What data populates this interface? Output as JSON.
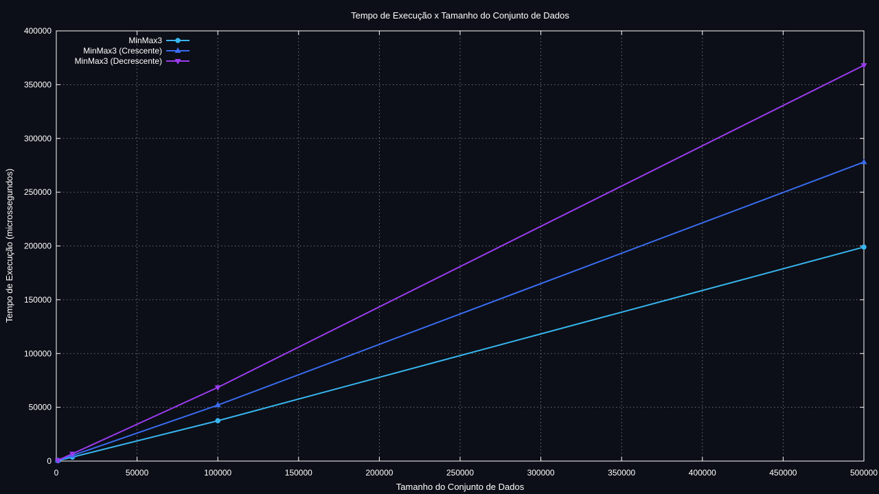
{
  "chart_data": {
    "type": "line",
    "title": "Tempo de Execução x Tamanho do Conjunto de Dados",
    "xlabel": "Tamanho do Conjunto de Dados",
    "ylabel": "Tempo de Execução (microssegundos)",
    "xlim": [
      0,
      500000
    ],
    "ylim": [
      0,
      400000
    ],
    "xticks": [
      0,
      50000,
      100000,
      150000,
      200000,
      250000,
      300000,
      350000,
      400000,
      450000,
      500000
    ],
    "yticks": [
      0,
      50000,
      100000,
      150000,
      200000,
      250000,
      300000,
      350000,
      400000
    ],
    "grid": true,
    "legend_position": "top-left",
    "colors": {
      "background": "#0c0f17",
      "foreground": "#ffffff",
      "grid": "#8a8d93"
    },
    "series": [
      {
        "name": "MinMax3",
        "color": "#38b6f0",
        "marker": "circle",
        "x": [
          1000,
          10000,
          100000,
          500000
        ],
        "y": [
          400,
          3700,
          37500,
          199000
        ]
      },
      {
        "name": "MinMax3 (Crescente)",
        "color": "#3a6cf0",
        "marker": "triangle-up",
        "x": [
          1000,
          10000,
          100000,
          500000
        ],
        "y": [
          550,
          5200,
          52000,
          278000
        ]
      },
      {
        "name": "MinMax3 (Decrescente)",
        "color": "#9b3cf0",
        "marker": "triangle-down",
        "x": [
          1000,
          10000,
          100000,
          500000
        ],
        "y": [
          700,
          6800,
          68500,
          368000
        ]
      }
    ]
  }
}
